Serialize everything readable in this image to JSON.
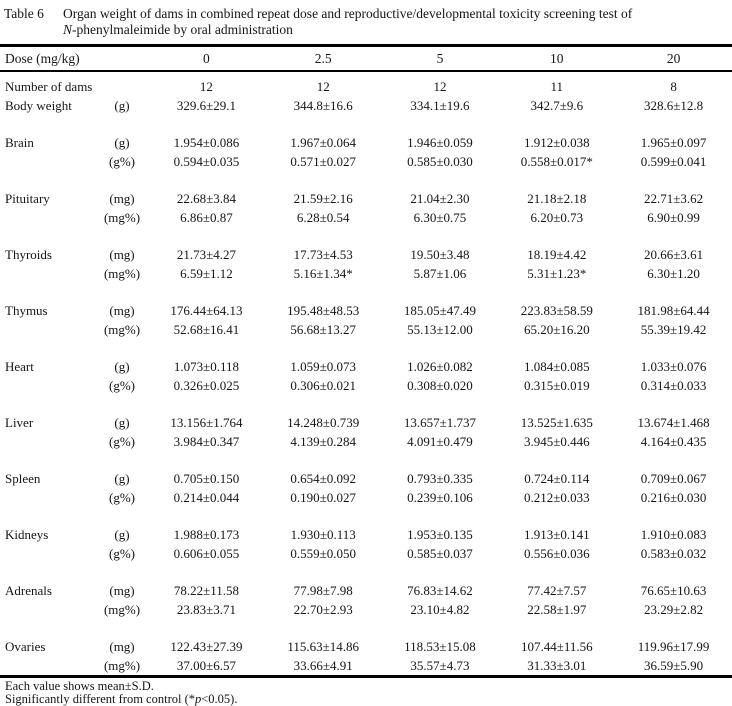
{
  "title": {
    "label": "Table 6",
    "caption_line1": "Organ weight of dams in combined repeat dose and reproductive/developmental toxicity screening test of",
    "caption_italic": "N",
    "caption_line2_rest": "-phenylmaleimide by oral administration"
  },
  "table": {
    "header": {
      "label": "Dose (mg/kg)",
      "doses": [
        "0",
        "2.5",
        "5",
        "10",
        "20"
      ]
    },
    "rows": [
      {
        "label": "Number of dams",
        "unit": "",
        "gap": false,
        "values": [
          "12",
          "12",
          "12",
          "11",
          "8"
        ]
      },
      {
        "label": "Body weight",
        "unit": "(g)",
        "gap": false,
        "values": [
          "329.6±29.1",
          "344.8±16.6",
          "334.1±19.6",
          "342.7±9.6",
          "328.6±12.8"
        ]
      },
      {
        "label": "Brain",
        "unit": "(g)",
        "gap": true,
        "values": [
          "1.954±0.086",
          "1.967±0.064",
          "1.946±0.059",
          "1.912±0.038",
          "1.965±0.097"
        ]
      },
      {
        "label": "",
        "unit": "(g%)",
        "gap": false,
        "values": [
          "0.594±0.035",
          "0.571±0.027",
          "0.585±0.030",
          "0.558±0.017*",
          "0.599±0.041"
        ]
      },
      {
        "label": "Pituitary",
        "unit": "(mg)",
        "gap": true,
        "values": [
          "22.68±3.84",
          "21.59±2.16",
          "21.04±2.30",
          "21.18±2.18",
          "22.71±3.62"
        ]
      },
      {
        "label": "",
        "unit": "(mg%)",
        "gap": false,
        "values": [
          "6.86±0.87",
          "6.28±0.54",
          "6.30±0.75",
          "6.20±0.73",
          "6.90±0.99"
        ]
      },
      {
        "label": "Thyroids",
        "unit": "(mg)",
        "gap": true,
        "values": [
          "21.73±4.27",
          "17.73±4.53",
          "19.50±3.48",
          "18.19±4.42",
          "20.66±3.61"
        ]
      },
      {
        "label": "",
        "unit": "(mg%)",
        "gap": false,
        "values": [
          "6.59±1.12",
          "5.16±1.34*",
          "5.87±1.06",
          "5.31±1.23*",
          "6.30±1.20"
        ]
      },
      {
        "label": "Thymus",
        "unit": "(mg)",
        "gap": true,
        "values": [
          "176.44±64.13",
          "195.48±48.53",
          "185.05±47.49",
          "223.83±58.59",
          "181.98±64.44"
        ]
      },
      {
        "label": "",
        "unit": "(mg%)",
        "gap": false,
        "values": [
          "52.68±16.41",
          "56.68±13.27",
          "55.13±12.00",
          "65.20±16.20",
          "55.39±19.42"
        ]
      },
      {
        "label": "Heart",
        "unit": "(g)",
        "gap": true,
        "values": [
          "1.073±0.118",
          "1.059±0.073",
          "1.026±0.082",
          "1.084±0.085",
          "1.033±0.076"
        ]
      },
      {
        "label": "",
        "unit": "(g%)",
        "gap": false,
        "values": [
          "0.326±0.025",
          "0.306±0.021",
          "0.308±0.020",
          "0.315±0.019",
          "0.314±0.033"
        ]
      },
      {
        "label": "Liver",
        "unit": "(g)",
        "gap": true,
        "values": [
          "13.156±1.764",
          "14.248±0.739",
          "13.657±1.737",
          "13.525±1.635",
          "13.674±1.468"
        ]
      },
      {
        "label": "",
        "unit": "(g%)",
        "gap": false,
        "values": [
          "3.984±0.347",
          "4.139±0.284",
          "4.091±0.479",
          "3.945±0.446",
          "4.164±0.435"
        ]
      },
      {
        "label": "Spleen",
        "unit": "(g)",
        "gap": true,
        "values": [
          "0.705±0.150",
          "0.654±0.092",
          "0.793±0.335",
          "0.724±0.114",
          "0.709±0.067"
        ]
      },
      {
        "label": "",
        "unit": "(g%)",
        "gap": false,
        "values": [
          "0.214±0.044",
          "0.190±0.027",
          "0.239±0.106",
          "0.212±0.033",
          "0.216±0.030"
        ]
      },
      {
        "label": "Kidneys",
        "unit": "(g)",
        "gap": true,
        "values": [
          "1.988±0.173",
          "1.930±0.113",
          "1.953±0.135",
          "1.913±0.141",
          "1.910±0.083"
        ]
      },
      {
        "label": "",
        "unit": "(g%)",
        "gap": false,
        "values": [
          "0.606±0.055",
          "0.559±0.050",
          "0.585±0.037",
          "0.556±0.036",
          "0.583±0.032"
        ]
      },
      {
        "label": "Adrenals",
        "unit": "(mg)",
        "gap": true,
        "values": [
          "78.22±11.58",
          "77.98±7.98",
          "76.83±14.62",
          "77.42±7.57",
          "76.65±10.63"
        ]
      },
      {
        "label": "",
        "unit": "(mg%)",
        "gap": false,
        "values": [
          "23.83±3.71",
          "22.70±2.93",
          "23.10±4.82",
          "22.58±1.97",
          "23.29±2.82"
        ]
      },
      {
        "label": "Ovaries",
        "unit": "(mg)",
        "gap": true,
        "values": [
          "122.43±27.39",
          "115.63±14.86",
          "118.53±15.08",
          "107.44±11.56",
          "119.96±17.99"
        ]
      },
      {
        "label": "",
        "unit": "(mg%)",
        "gap": false,
        "values": [
          "37.00±6.57",
          "33.66±4.91",
          "35.57±4.73",
          "31.33±3.01",
          "36.59±5.90"
        ]
      }
    ]
  },
  "footnotes": {
    "line1": "Each value shows mean±S.D.",
    "line2_pre": "Significantly different from control (*",
    "line2_italic": "p",
    "line2_post": "<0.05)."
  }
}
